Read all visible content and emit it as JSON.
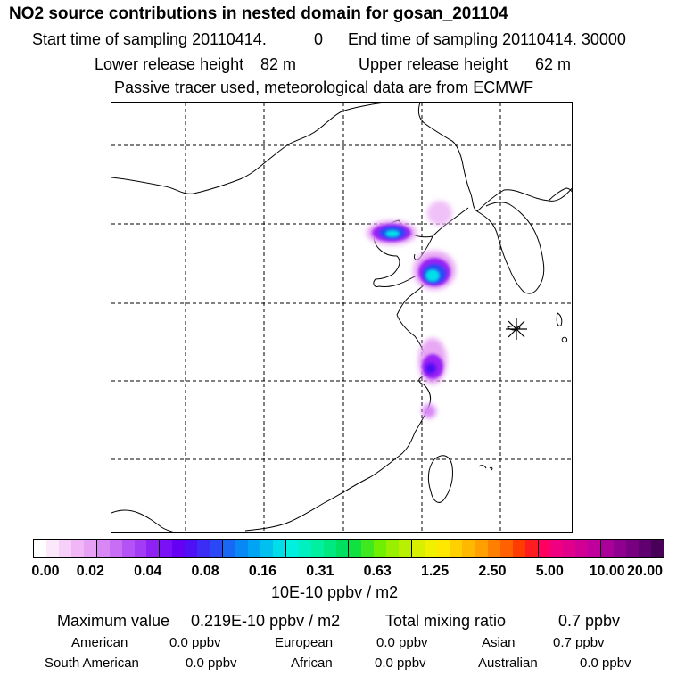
{
  "header": {
    "title": "NO2 source contributions in nested domain for gosan_201104",
    "start_label": "Start time of sampling 20110414.",
    "start_value": "0",
    "end_label": "End time of sampling 20110414. 30000",
    "lower_label": "Lower release height",
    "lower_value": "82 m",
    "upper_label": "Upper release height",
    "upper_value": "62 m",
    "tracer": "Passive tracer used, meteorological data are from ECMWF"
  },
  "colorbar": {
    "unit": "10E-10 ppbv / m2",
    "ticks": [
      "0.00",
      "0.02",
      "0.04",
      "0.08",
      "0.16",
      "0.31",
      "0.63",
      "1.25",
      "2.50",
      "5.00",
      "10.00",
      "20.00"
    ],
    "colors": [
      "#ffffff",
      "#fbe8fb",
      "#f6d0f8",
      "#f0b6f6",
      "#e6a0f4",
      "#d888f5",
      "#c86ef5",
      "#b552f5",
      "#a23cf5",
      "#8e22f5",
      "#7a10f5",
      "#6600f5",
      "#5010f5",
      "#3c2cf5",
      "#2a48f5",
      "#1868f5",
      "#0888f5",
      "#00a4f5",
      "#00c0f0",
      "#00dce8",
      "#00f0e0",
      "#00f0c0",
      "#00f0a0",
      "#00e880",
      "#00e060",
      "#10e040",
      "#40e820",
      "#70f000",
      "#98f000",
      "#b8f000",
      "#d8f000",
      "#f0f000",
      "#ffe800",
      "#ffd000",
      "#ffb800",
      "#ffa000",
      "#ff8000",
      "#ff6000",
      "#ff3c00",
      "#ff1c20",
      "#ff0060",
      "#f00080",
      "#e0008c",
      "#d00094",
      "#c0009c",
      "#a80098",
      "#900090",
      "#780080",
      "#600070",
      "#480058"
    ]
  },
  "stats": {
    "max_label": "Maximum value",
    "max_value": "0.219E-10 ppbv / m2",
    "total_label": "Total mixing ratio",
    "total_value": "0.7 ppbv",
    "regions": [
      {
        "name": "American",
        "value": "0.0 ppbv"
      },
      {
        "name": "European",
        "value": "0.0 ppbv"
      },
      {
        "name": "Asian",
        "value": "0.7 ppbv"
      },
      {
        "name": "South American",
        "value": "0.0 ppbv"
      },
      {
        "name": "African",
        "value": "0.0 ppbv"
      },
      {
        "name": "Australian",
        "value": "0.0 ppbv"
      }
    ]
  },
  "map": {
    "receptor_marker": "asterisk",
    "grid": "dashed lat/lon lines",
    "plume_colors": {
      "low": "#e8a8f4",
      "mid": "#9a22f5",
      "high": "#2a48f5",
      "peak": "#00e0e8"
    }
  }
}
